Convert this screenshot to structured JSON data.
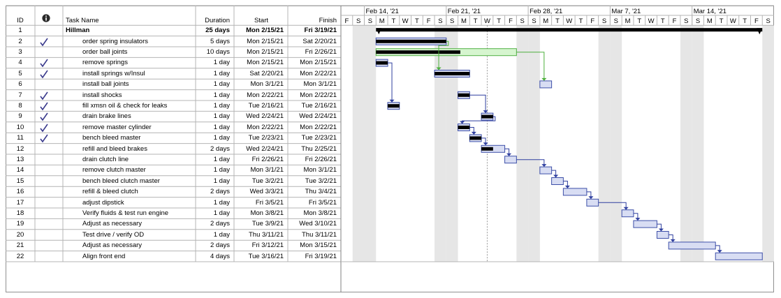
{
  "columns": {
    "id": "ID",
    "indicators_icon": "info-icon",
    "task_name": "Task Name",
    "duration": "Duration",
    "start": "Start",
    "finish": "Finish"
  },
  "timescale": {
    "weeks": [
      "Feb 14, '21",
      "Feb 21, '21",
      "Feb 28, '21",
      "Mar 7, '21",
      "Mar 14, '21"
    ],
    "leading_days": [
      "F",
      "S"
    ],
    "day_letters": [
      "S",
      "M",
      "T",
      "W",
      "T",
      "F",
      "S"
    ],
    "first_day": "2021-02-12",
    "total_days": 37
  },
  "colors": {
    "critical_bar": "#000000",
    "bar_fill": "#d8ddf3",
    "bar_border": "#3d4fa8",
    "link_normal": "#2f3f9f",
    "link_highlight": "#4caf3c",
    "green_bar_fill": "#d6f5cf",
    "green_bar_border": "#52b045",
    "nonworking_shade": "#e6e6e6",
    "status_line": "#999999",
    "check_color": "#3a3a8c"
  },
  "status_date": "2021-02-24",
  "tasks": [
    {
      "id": "1",
      "done": false,
      "name": "Hillman",
      "summary": true,
      "duration": "25 days",
      "start": "Mon 2/15/21",
      "finish": "Fri 3/19/21",
      "start_date": "2021-02-15",
      "days": 33,
      "percent_complete": 16
    },
    {
      "id": "2",
      "done": true,
      "name": "order spring insulators",
      "summary": false,
      "duration": "5 days",
      "start": "Mon 2/15/21",
      "finish": "Sat 2/20/21",
      "start_date": "2021-02-15",
      "days": 6,
      "percent_complete": 100,
      "style": "black",
      "link_to": "5",
      "link_style": "green"
    },
    {
      "id": "3",
      "done": false,
      "name": "order ball joints",
      "summary": false,
      "duration": "10 days",
      "start": "Mon 2/15/21",
      "finish": "Fri 2/26/21",
      "start_date": "2021-02-15",
      "days": 12,
      "percent_complete": 60,
      "style": "green",
      "link_to": "6",
      "link_style": "green"
    },
    {
      "id": "4",
      "done": true,
      "name": "remove springs",
      "summary": false,
      "duration": "1 day",
      "start": "Mon 2/15/21",
      "finish": "Mon 2/15/21",
      "start_date": "2021-02-15",
      "days": 1,
      "percent_complete": 100,
      "style": "black",
      "link_to": "8"
    },
    {
      "id": "5",
      "done": true,
      "name": "install springs w/Insul",
      "summary": false,
      "duration": "1 day",
      "start": "Sat 2/20/21",
      "finish": "Mon 2/22/21",
      "start_date": "2021-02-20",
      "days": 3,
      "percent_complete": 100,
      "style": "black"
    },
    {
      "id": "6",
      "done": false,
      "name": "install ball joints",
      "summary": false,
      "duration": "1 day",
      "start": "Mon 3/1/21",
      "finish": "Mon 3/1/21",
      "start_date": "2021-03-01",
      "days": 1,
      "percent_complete": 0,
      "style": "blue"
    },
    {
      "id": "7",
      "done": true,
      "name": "install shocks",
      "summary": false,
      "duration": "1 day",
      "start": "Mon 2/22/21",
      "finish": "Mon 2/22/21",
      "start_date": "2021-02-22",
      "days": 1,
      "percent_complete": 100,
      "style": "black",
      "link_to": "9"
    },
    {
      "id": "8",
      "done": true,
      "name": "fill xmsn oil & check for leaks",
      "summary": false,
      "duration": "1 day",
      "start": "Tue 2/16/21",
      "finish": "Tue 2/16/21",
      "start_date": "2021-02-16",
      "days": 1,
      "percent_complete": 100,
      "style": "black"
    },
    {
      "id": "9",
      "done": true,
      "name": "drain brake lines",
      "summary": false,
      "duration": "1 day",
      "start": "Wed 2/24/21",
      "finish": "Wed 2/24/21",
      "start_date": "2021-02-24",
      "days": 1,
      "percent_complete": 100,
      "style": "black",
      "link_to": "10"
    },
    {
      "id": "10",
      "done": true,
      "name": "remove master cylinder",
      "summary": false,
      "duration": "1 day",
      "start": "Mon 2/22/21",
      "finish": "Mon 2/22/21",
      "start_date": "2021-02-22",
      "days": 1,
      "percent_complete": 100,
      "style": "black",
      "link_to": "11"
    },
    {
      "id": "11",
      "done": true,
      "name": "bench bleed master",
      "summary": false,
      "duration": "1 day",
      "start": "Tue 2/23/21",
      "finish": "Tue 2/23/21",
      "start_date": "2021-02-23",
      "days": 1,
      "percent_complete": 100,
      "style": "black",
      "link_to": "12"
    },
    {
      "id": "12",
      "done": false,
      "name": "refill and bleed brakes",
      "summary": false,
      "duration": "2 days",
      "start": "Wed 2/24/21",
      "finish": "Thu 2/25/21",
      "start_date": "2021-02-24",
      "days": 2,
      "percent_complete": 50,
      "style": "partial",
      "link_to": "13"
    },
    {
      "id": "13",
      "done": false,
      "name": "drain clutch line",
      "summary": false,
      "duration": "1 day",
      "start": "Fri 2/26/21",
      "finish": "Fri 2/26/21",
      "start_date": "2021-02-26",
      "days": 1,
      "percent_complete": 0,
      "style": "blue",
      "link_to": "14"
    },
    {
      "id": "14",
      "done": false,
      "name": "remove clutch master",
      "summary": false,
      "duration": "1 day",
      "start": "Mon 3/1/21",
      "finish": "Mon 3/1/21",
      "start_date": "2021-03-01",
      "days": 1,
      "percent_complete": 0,
      "style": "blue",
      "link_to": "15"
    },
    {
      "id": "15",
      "done": false,
      "name": "bench bleed clutch master",
      "summary": false,
      "duration": "1 day",
      "start": "Tue 3/2/21",
      "finish": "Tue 3/2/21",
      "start_date": "2021-03-02",
      "days": 1,
      "percent_complete": 0,
      "style": "blue",
      "link_to": "16"
    },
    {
      "id": "16",
      "done": false,
      "name": "refill & bleed clutch",
      "summary": false,
      "duration": "2 days",
      "start": "Wed 3/3/21",
      "finish": "Thu 3/4/21",
      "start_date": "2021-03-03",
      "days": 2,
      "percent_complete": 0,
      "style": "blue",
      "link_to": "17"
    },
    {
      "id": "17",
      "done": false,
      "name": "adjust dipstick",
      "summary": false,
      "duration": "1 day",
      "start": "Fri 3/5/21",
      "finish": "Fri 3/5/21",
      "start_date": "2021-03-05",
      "days": 1,
      "percent_complete": 0,
      "style": "blue",
      "link_to": "18"
    },
    {
      "id": "18",
      "done": false,
      "name": "Verify fluids & test run engine",
      "summary": false,
      "duration": "1 day",
      "start": "Mon 3/8/21",
      "finish": "Mon 3/8/21",
      "start_date": "2021-03-08",
      "days": 1,
      "percent_complete": 0,
      "style": "blue",
      "link_to": "19"
    },
    {
      "id": "19",
      "done": false,
      "name": "Adjust as necessary",
      "summary": false,
      "duration": "2 days",
      "start": "Tue 3/9/21",
      "finish": "Wed 3/10/21",
      "start_date": "2021-03-09",
      "days": 2,
      "percent_complete": 0,
      "style": "blue",
      "link_to": "20"
    },
    {
      "id": "20",
      "done": false,
      "name": "Test drive / verify OD",
      "summary": false,
      "duration": "1 day",
      "start": "Thu 3/11/21",
      "finish": "Thu 3/11/21",
      "start_date": "2021-03-11",
      "days": 1,
      "percent_complete": 0,
      "style": "blue",
      "link_to": "21"
    },
    {
      "id": "21",
      "done": false,
      "name": "Adjust as necessary",
      "summary": false,
      "duration": "2 days",
      "start": "Fri 3/12/21",
      "finish": "Mon 3/15/21",
      "start_date": "2021-03-12",
      "days": 4,
      "percent_complete": 0,
      "style": "blue",
      "link_to": "22"
    },
    {
      "id": "22",
      "done": false,
      "name": "Align front end",
      "summary": false,
      "duration": "4 days",
      "start": "Tue 3/16/21",
      "finish": "Fri 3/19/21",
      "start_date": "2021-03-16",
      "days": 4,
      "percent_complete": 0,
      "style": "blue"
    }
  ]
}
